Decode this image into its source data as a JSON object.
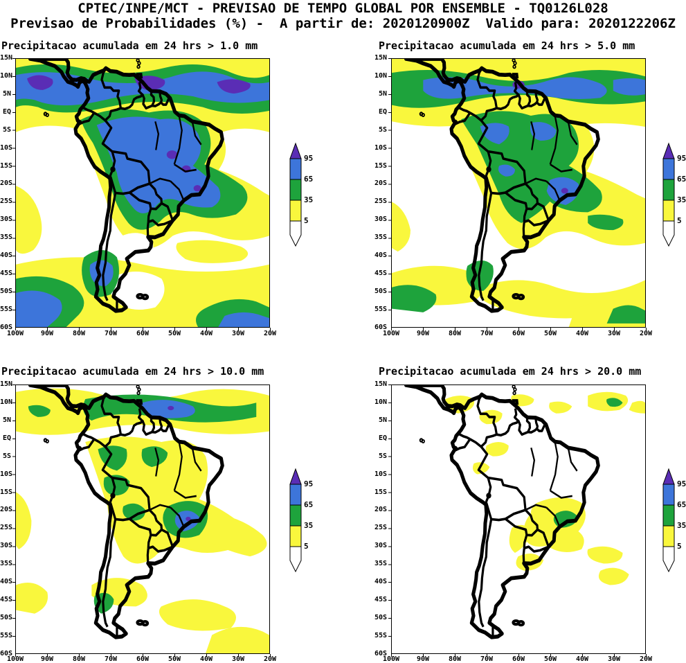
{
  "header": {
    "line1": "CPTEC/INPE/MCT - PREVISAO DE TEMPO GLOBAL POR ENSEMBLE - TQ0126L028",
    "line2": "Previsao de Probabilidades (%) -  A partir de: 2020120900Z  Valido para: 2020122206Z"
  },
  "panels": [
    {
      "title": "Precipitacao acumulada em 24 hrs > 1.0 mm",
      "threshold_mm": 1.0
    },
    {
      "title": "Precipitacao acumulada em 24 hrs > 5.0 mm",
      "threshold_mm": 5.0
    },
    {
      "title": "Precipitacao acumulada em 24 hrs > 10.0 mm",
      "threshold_mm": 10.0
    },
    {
      "title": "Precipitacao acumulada em 24 hrs > 20.0 mm",
      "threshold_mm": 20.0
    }
  ],
  "axes": {
    "lat_ticks": [
      "15N",
      "10N",
      "5N",
      "EQ",
      "5S",
      "10S",
      "15S",
      "20S",
      "25S",
      "30S",
      "35S",
      "40S",
      "45S",
      "50S",
      "55S",
      "60S"
    ],
    "lon_ticks": [
      "100W",
      "90W",
      "80W",
      "70W",
      "60W",
      "50W",
      "40W",
      "30W",
      "20W"
    ]
  },
  "colorbar": {
    "labels": [
      "95",
      "65",
      "35",
      "5"
    ]
  },
  "colors": {
    "yellow": "#f9f73d",
    "green": "#1ea33c",
    "blue": "#3d75da",
    "purple": "#5a2db5",
    "outline": "#000000",
    "background": "#ffffff"
  },
  "chart_data": {
    "type": "heatmap",
    "subtype": "filled_contour_probability_maps",
    "title": "CPTEC/INPE/MCT - PREVISAO DE TEMPO GLOBAL POR ENSEMBLE - TQ0126L028",
    "subtitle": "Previsao de Probabilidades (%) - A partir de: 2020120900Z Valido para: 2020122206Z",
    "variable": "Probability of 24-hour accumulated precipitation exceeding threshold",
    "units": "%",
    "init_time": "2020120900Z",
    "valid_time": "2020122206Z",
    "model": "TQ0126L028",
    "region": "South America",
    "lon_range_deg": [
      -100,
      -20
    ],
    "lat_range_deg": [
      -60,
      15
    ],
    "lon_ticks": [
      "100W",
      "90W",
      "80W",
      "70W",
      "60W",
      "50W",
      "40W",
      "30W",
      "20W"
    ],
    "lat_ticks": [
      "15N",
      "10N",
      "5N",
      "EQ",
      "5S",
      "10S",
      "15S",
      "20S",
      "25S",
      "30S",
      "35S",
      "40S",
      "45S",
      "50S",
      "55S",
      "60S"
    ],
    "contour_levels_percent": [
      5,
      35,
      65,
      95
    ],
    "legend_bins": [
      {
        "range_percent": "< 5",
        "color": "#ffffff"
      },
      {
        "range_percent": "5-35",
        "color": "#f9f73d"
      },
      {
        "range_percent": "35-65",
        "color": "#1ea33c"
      },
      {
        "range_percent": "65-95",
        "color": "#3d75da"
      },
      {
        "range_percent": "> 95",
        "color": "#5a2db5"
      }
    ],
    "panels": [
      {
        "threshold_mm": 1.0,
        "title": "Precipitacao acumulada em 24 hrs > 1.0 mm",
        "summary": "High probabilities (65-95% with >95% cores) along the ITCZ near 5N-10N across the whole domain and over the Amazon basin and central/southeast Brazil; broad 35-65% surroundings; 35-95% bands over the far South Pacific and South Atlantic near 45S-60S; mostly <5% over the SE Pacific off Chile/Peru and central Argentina."
      },
      {
        "threshold_mm": 5.0,
        "title": "Precipitacao acumulada em 24 hrs > 5.0 mm",
        "summary": "ITCZ band mostly 35-95% with small >95% spots; Amazon and central Brazil 35-65% with 65-95% cores and a core near 22S 46W; mid-latitude storm-track bands mostly 5-35% with 35-65% streaks."
      },
      {
        "threshold_mm": 10.0,
        "title": "Precipitacao acumulada em 24 hrs > 10.0 mm",
        "summary": "Mostly 5-35%; 35-65% patches over the western Amazon, the ITCZ and southeast Brazil; small 65-95% cores in the ITCZ near 55W and near 22S 48W."
      },
      {
        "threshold_mm": 20.0,
        "title": "Precipitacao acumulada em 24 hrs > 20.0 mm",
        "summary": "Mostly below 5%; scattered 5-35% patches along the ITCZ, over the western Amazon, Paraguay/northern Argentina and southeast Brazil, with small 35-65% cores near 6N 30W and 22S 48W."
      }
    ]
  }
}
